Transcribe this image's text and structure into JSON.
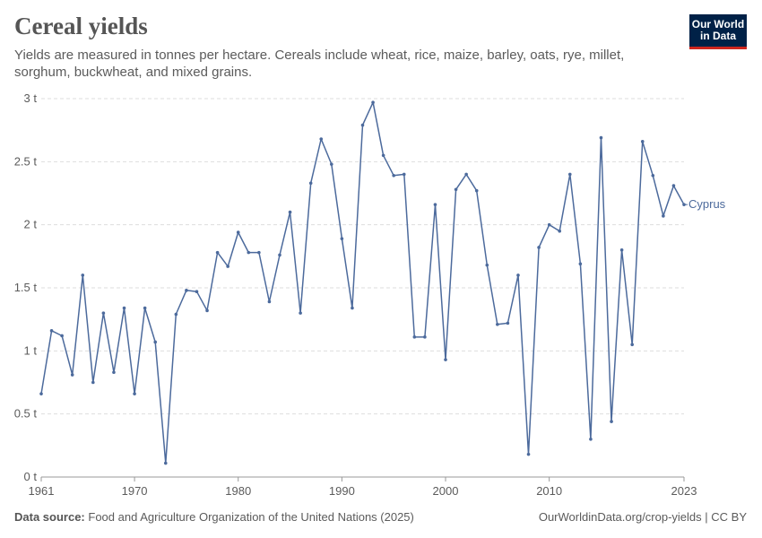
{
  "header": {
    "title": "Cereal yields",
    "subtitle": "Yields are measured in tonnes per hectare. Cereals include wheat, rice, maize, barley, oats, rye, millet, sorghum, buckwheat, and mixed grains.",
    "logo_line1": "Our World",
    "logo_line2": "in Data"
  },
  "footer": {
    "source_label": "Data source:",
    "source_text": "Food and Agriculture Organization of the United Nations (2025)",
    "link_text": "OurWorldinData.org/crop-yields | CC BY"
  },
  "colors": {
    "series": "#4c6a9c",
    "grid": "#dddddd",
    "axis": "#999999",
    "text": "#5b5b5b"
  },
  "chart_data": {
    "type": "line",
    "title": "Cereal yields",
    "xlabel": "",
    "ylabel": "",
    "xlim": [
      1961,
      2023
    ],
    "ylim": [
      0,
      3
    ],
    "grid": true,
    "x_ticks": [
      1961,
      1970,
      1980,
      1990,
      2000,
      2010,
      2023
    ],
    "x_tick_labels": [
      "1961",
      "1970",
      "1980",
      "1990",
      "2000",
      "2010",
      "2023"
    ],
    "y_ticks": [
      0,
      0.5,
      1,
      1.5,
      2,
      2.5,
      3
    ],
    "y_tick_labels": [
      "0 t",
      "0.5 t",
      "1 t",
      "1.5 t",
      "2 t",
      "2.5 t",
      "3 t"
    ],
    "series": [
      {
        "name": "Cyprus",
        "x": [
          1961,
          1962,
          1963,
          1964,
          1965,
          1966,
          1967,
          1968,
          1969,
          1970,
          1971,
          1972,
          1973,
          1974,
          1975,
          1976,
          1977,
          1978,
          1979,
          1980,
          1981,
          1982,
          1983,
          1984,
          1985,
          1986,
          1987,
          1988,
          1989,
          1990,
          1991,
          1992,
          1993,
          1994,
          1995,
          1996,
          1997,
          1998,
          1999,
          2000,
          2001,
          2002,
          2003,
          2004,
          2005,
          2006,
          2007,
          2008,
          2009,
          2010,
          2011,
          2012,
          2013,
          2014,
          2015,
          2016,
          2017,
          2018,
          2019,
          2020,
          2021,
          2022,
          2023
        ],
        "values": [
          0.66,
          1.16,
          1.12,
          0.81,
          1.6,
          0.75,
          1.3,
          0.83,
          1.34,
          0.66,
          1.34,
          1.07,
          0.11,
          1.29,
          1.48,
          1.47,
          1.32,
          1.78,
          1.67,
          1.94,
          1.78,
          1.78,
          1.39,
          1.76,
          2.1,
          1.3,
          2.33,
          2.68,
          2.48,
          1.89,
          1.34,
          2.79,
          2.97,
          2.55,
          2.39,
          2.4,
          1.11,
          1.11,
          2.16,
          0.93,
          2.28,
          2.4,
          2.27,
          1.68,
          1.21,
          1.22,
          1.6,
          0.18,
          1.82,
          2.0,
          1.95,
          2.4,
          1.69,
          0.3,
          2.69,
          0.44,
          1.8,
          1.05,
          2.66,
          2.39,
          2.07,
          2.31,
          2.16
        ]
      }
    ]
  }
}
